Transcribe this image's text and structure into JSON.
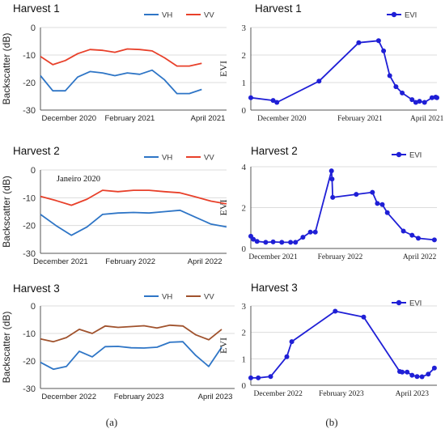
{
  "panel_labels": [
    "(a)",
    "(b)"
  ],
  "colors": {
    "vh": "#2E75C6",
    "vv": "#E8402A",
    "vv3": "#A0522D",
    "evi": "#1F1FD6",
    "grid": "#dcdcdc",
    "axis": "#555555"
  },
  "chart_data": [
    {
      "type": "line",
      "title": "Harvest 1",
      "ylabel": "Backscatter (dB)",
      "ylim": [
        -30,
        0
      ],
      "yticks": [
        0,
        -10,
        -20,
        -30
      ],
      "xlim": [
        0,
        15
      ],
      "xtick_labels": [
        {
          "label": "December 2020",
          "x": 2.3
        },
        {
          "label": "February 2021",
          "x": 7.2
        },
        {
          "label": "April 2021",
          "x": 13.5
        }
      ],
      "legend": "top-right",
      "series": [
        {
          "name": "VH",
          "color": "#2E75C6",
          "x": [
            0,
            1,
            2,
            3,
            4,
            5,
            6,
            7,
            8,
            9,
            10,
            11,
            12,
            13,
            14,
            15
          ],
          "values": [
            -17.5,
            -23,
            -23,
            -18,
            -16,
            -16.5,
            -17.5,
            -16.5,
            -17,
            -15.5,
            -19,
            -24,
            -24,
            -22.5,
            null,
            null
          ]
        },
        {
          "name": "VV",
          "color": "#E8402A",
          "x": [
            0,
            1,
            2,
            3,
            4,
            5,
            6,
            7,
            8,
            9,
            10,
            11,
            12,
            13,
            14,
            15
          ],
          "values": [
            -10.5,
            -13.5,
            -12,
            -9.5,
            -8,
            -8.3,
            -9,
            -7.8,
            -8,
            -8.5,
            -11,
            -14,
            -14,
            -13,
            null,
            null
          ]
        }
      ]
    },
    {
      "type": "line",
      "title": "Harvest 1",
      "ylabel": "EVI",
      "ylim": [
        0,
        3
      ],
      "yticks": [
        0,
        1,
        2,
        3
      ],
      "xlim": [
        0,
        15
      ],
      "xtick_labels": [
        {
          "label": "December 2020",
          "x": 2.5
        },
        {
          "label": "February 2021",
          "x": 8.8
        },
        {
          "label": "April 2021",
          "x": 14.2
        }
      ],
      "legend": "top-right",
      "series": [
        {
          "name": "EVI",
          "color": "#1F1FD6",
          "x": [
            0,
            1.8,
            2.1,
            5.5,
            8.7,
            10.3,
            10.7,
            11.2,
            11.7,
            12.2,
            13.0,
            13.3,
            13.6,
            14.0,
            14.6,
            14.9,
            15.0
          ],
          "values": [
            0.45,
            0.35,
            0.28,
            1.05,
            2.45,
            2.52,
            2.15,
            1.25,
            0.85,
            0.62,
            0.38,
            0.28,
            0.32,
            0.28,
            0.45,
            0.47,
            0.45
          ]
        }
      ]
    },
    {
      "type": "line",
      "title": "Harvest 2",
      "annotation": "Janeiro 2020",
      "ylabel": "Backscatter (dB)",
      "ylim": [
        -30,
        0
      ],
      "yticks": [
        0,
        -10,
        -20,
        -30
      ],
      "xlim": [
        0,
        12
      ],
      "xtick_labels": [
        {
          "label": "December 2021",
          "x": 1.3
        },
        {
          "label": "February 2022",
          "x": 5.8
        },
        {
          "label": "April 2022",
          "x": 10.6
        }
      ],
      "legend": "top-right",
      "series": [
        {
          "name": "VH",
          "color": "#2E75C6",
          "x": [
            0,
            1,
            2,
            3,
            4,
            5,
            6,
            7,
            8,
            9,
            10,
            11,
            12
          ],
          "values": [
            -16,
            -20,
            -23.5,
            -20.5,
            -16,
            -15.5,
            -15.3,
            -15.5,
            -15,
            -14.5,
            -17,
            -19.5,
            -20.5
          ]
        },
        {
          "name": "VV",
          "color": "#E8402A",
          "x": [
            0,
            1,
            2,
            3,
            4,
            5,
            6,
            7,
            8,
            9,
            10,
            11,
            12
          ],
          "values": [
            -9.5,
            -11,
            -12.7,
            -10.5,
            -7.3,
            -7.8,
            -7.3,
            -7.3,
            -7.8,
            -8.2,
            -9.7,
            -11.2,
            -12.2
          ]
        }
      ]
    },
    {
      "type": "line",
      "title": "Harvest 2",
      "ylabel": "EVI",
      "ylim": [
        0,
        4
      ],
      "yticks": [
        0,
        2,
        4
      ],
      "xlim": [
        0,
        15
      ],
      "xtick_labels": [
        {
          "label": "December 2021",
          "x": 1.8
        },
        {
          "label": "February 2022",
          "x": 7.2
        },
        {
          "label": "April 2022",
          "x": 13.6
        }
      ],
      "legend": "top-right",
      "series": [
        {
          "name": "EVI",
          "color": "#1F1FD6",
          "x": [
            0,
            0.2,
            0.5,
            1.2,
            1.8,
            2.5,
            3.2,
            3.6,
            4.2,
            4.8,
            5.2,
            6.5,
            6.55,
            6.6,
            8.5,
            9.8,
            10.2,
            10.6,
            11.0,
            12.3,
            13.0,
            13.5,
            14.8
          ],
          "values": [
            0.6,
            0.45,
            0.35,
            0.3,
            0.32,
            0.3,
            0.3,
            0.3,
            0.55,
            0.8,
            0.8,
            3.8,
            3.4,
            2.5,
            2.65,
            2.75,
            2.2,
            2.15,
            1.75,
            0.85,
            0.65,
            0.5,
            0.42
          ]
        }
      ]
    },
    {
      "type": "line",
      "title": "Harvest 3",
      "ylabel": "Backscatter (dB)",
      "ylim": [
        -30,
        0
      ],
      "yticks": [
        0,
        -10,
        -20,
        -30
      ],
      "xlim": [
        0,
        15
      ],
      "xtick_labels": [
        {
          "label": "December 2022",
          "x": 2.2
        },
        {
          "label": "February 2023",
          "x": 7.6
        },
        {
          "label": "April 2023",
          "x": 13.5
        }
      ],
      "legend": "top-right",
      "series": [
        {
          "name": "VH",
          "color": "#2E75C6",
          "x": [
            0,
            1,
            2,
            3,
            4,
            5,
            6,
            7,
            8,
            9,
            10,
            11,
            12,
            13,
            14,
            15
          ],
          "values": [
            -20.5,
            -23,
            -22,
            -16.5,
            -18.5,
            -14.8,
            -14.7,
            -15.2,
            -15.3,
            -15,
            -13.2,
            -13,
            -18,
            -22,
            -15,
            null
          ]
        },
        {
          "name": "VV",
          "color": "#A0522D",
          "x": [
            0,
            1,
            2,
            3,
            4,
            5,
            6,
            7,
            8,
            9,
            10,
            11,
            12,
            13,
            14,
            15
          ],
          "values": [
            -12,
            -13,
            -11.5,
            -8.5,
            -10,
            -7.3,
            -7.8,
            -7.5,
            -7.2,
            -8,
            -7,
            -7.3,
            -10.5,
            -12.3,
            -8.5,
            null
          ]
        }
      ]
    },
    {
      "type": "line",
      "title": "Harvest 3",
      "ylabel": "EVI",
      "ylim": [
        0,
        3
      ],
      "yticks": [
        0,
        1,
        2,
        3
      ],
      "xlim": [
        0,
        15
      ],
      "xtick_labels": [
        {
          "label": "December 2022",
          "x": 2.2
        },
        {
          "label": "February 2023",
          "x": 7.3
        },
        {
          "label": "April 2023",
          "x": 13.0
        }
      ],
      "legend": "top-right",
      "series": [
        {
          "name": "EVI",
          "color": "#1F1FD6",
          "x": [
            0,
            0.6,
            1.6,
            2.9,
            3.3,
            6.8,
            9.1,
            12.0,
            12.2,
            12.6,
            13.0,
            13.4,
            13.8,
            14.3,
            14.8
          ],
          "values": [
            0.28,
            0.28,
            0.33,
            1.08,
            1.65,
            2.8,
            2.58,
            0.52,
            0.5,
            0.5,
            0.38,
            0.33,
            0.32,
            0.42,
            0.65
          ]
        }
      ]
    }
  ]
}
